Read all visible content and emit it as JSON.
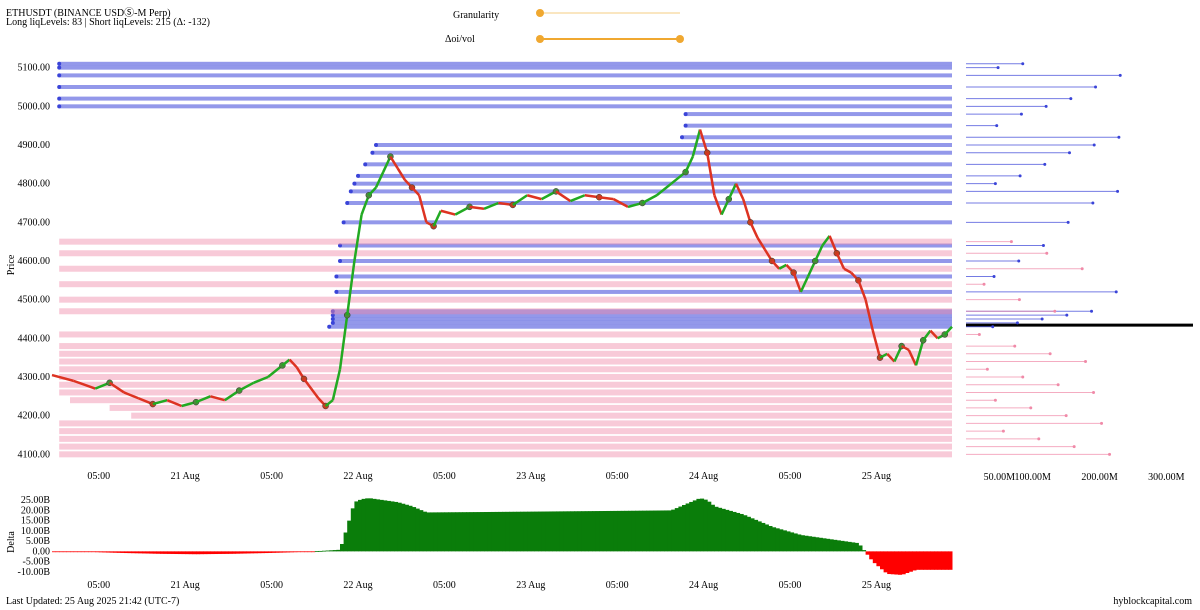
{
  "header": {
    "title": "ETHUSDT (BINANCE USDⓈ-M Perp)",
    "subtitle": "Long liqLevels: 83 | Short liqLevels: 215 (Δ: -132)"
  },
  "controls": {
    "granularity": {
      "label": "Granularity",
      "value": 0.0
    },
    "oi_vol": {
      "label": "Δoi/vol",
      "range": [
        0.0,
        1.0
      ]
    }
  },
  "footer": {
    "last_updated": "Last Updated: 25 Aug 2025 21:42 (UTC-7)",
    "brand": "hyblockcapital.com"
  },
  "colors": {
    "short_lines": "#3a44d8",
    "long_lines": "#f08aa8",
    "candle_up": "#22aa22",
    "candle_down": "#dd3322",
    "delta_pos": "#0a7d0a",
    "delta_neg": "#ff0000",
    "slider": "#f0a830"
  },
  "chart_data": [
    {
      "type": "line",
      "ylabel": "Price",
      "ylim": [
        4075,
        5125
      ],
      "yticks": [
        "4100.00",
        "4200.00",
        "4300.00",
        "4400.00",
        "4500.00",
        "4600.00",
        "4700.00",
        "4800.00",
        "4900.00",
        "5000.00",
        "5100.00"
      ],
      "xticks": [
        "05:00",
        "21 Aug",
        "05:00",
        "22 Aug",
        "05:00",
        "23 Aug",
        "05:00",
        "24 Aug",
        "05:00",
        "25 Aug"
      ],
      "price_points": [
        [
          0,
          4305
        ],
        [
          3,
          4290
        ],
        [
          6,
          4270
        ],
        [
          8,
          4285
        ],
        [
          10,
          4260
        ],
        [
          12,
          4245
        ],
        [
          14,
          4230
        ],
        [
          16,
          4240
        ],
        [
          18,
          4225
        ],
        [
          20,
          4235
        ],
        [
          22,
          4250
        ],
        [
          24,
          4240
        ],
        [
          26,
          4265
        ],
        [
          28,
          4285
        ],
        [
          30,
          4300
        ],
        [
          32,
          4330
        ],
        [
          33,
          4345
        ],
        [
          34,
          4325
        ],
        [
          35,
          4295
        ],
        [
          36,
          4270
        ],
        [
          37,
          4245
        ],
        [
          38,
          4225
        ],
        [
          39,
          4240
        ],
        [
          40,
          4320
        ],
        [
          41,
          4460
        ],
        [
          42,
          4600
        ],
        [
          43,
          4720
        ],
        [
          44,
          4770
        ],
        [
          45,
          4790
        ],
        [
          46,
          4830
        ],
        [
          47,
          4870
        ],
        [
          48,
          4840
        ],
        [
          49,
          4810
        ],
        [
          50,
          4790
        ],
        [
          51,
          4770
        ],
        [
          52,
          4700
        ],
        [
          53,
          4690
        ],
        [
          54,
          4730
        ],
        [
          56,
          4720
        ],
        [
          58,
          4740
        ],
        [
          60,
          4735
        ],
        [
          62,
          4750
        ],
        [
          64,
          4745
        ],
        [
          66,
          4770
        ],
        [
          68,
          4760
        ],
        [
          70,
          4780
        ],
        [
          72,
          4755
        ],
        [
          74,
          4770
        ],
        [
          76,
          4765
        ],
        [
          78,
          4760
        ],
        [
          80,
          4740
        ],
        [
          82,
          4750
        ],
        [
          84,
          4770
        ],
        [
          86,
          4800
        ],
        [
          88,
          4830
        ],
        [
          89,
          4870
        ],
        [
          90,
          4940
        ],
        [
          91,
          4880
        ],
        [
          92,
          4770
        ],
        [
          93,
          4720
        ],
        [
          94,
          4760
        ],
        [
          95,
          4800
        ],
        [
          96,
          4760
        ],
        [
          97,
          4700
        ],
        [
          98,
          4660
        ],
        [
          99,
          4630
        ],
        [
          100,
          4600
        ],
        [
          101,
          4580
        ],
        [
          102,
          4590
        ],
        [
          103,
          4570
        ],
        [
          104,
          4520
        ],
        [
          105,
          4560
        ],
        [
          106,
          4600
        ],
        [
          107,
          4640
        ],
        [
          108,
          4665
        ],
        [
          109,
          4620
        ],
        [
          110,
          4580
        ],
        [
          111,
          4570
        ],
        [
          112,
          4550
        ],
        [
          113,
          4500
        ],
        [
          114,
          4420
        ],
        [
          115,
          4350
        ],
        [
          116,
          4360
        ],
        [
          117,
          4340
        ],
        [
          118,
          4380
        ],
        [
          119,
          4370
        ],
        [
          120,
          4330
        ],
        [
          121,
          4395
        ],
        [
          122,
          4420
        ],
        [
          123,
          4400
        ],
        [
          124,
          4410
        ],
        [
          125,
          4430
        ]
      ],
      "current_price": 4434,
      "liq_levels": {
        "short": [
          4430,
          4440,
          4450,
          4460,
          4470,
          4520,
          4560,
          4600,
          4640,
          4700,
          4750,
          4780,
          4800,
          4820,
          4850,
          4880,
          4900,
          4920,
          4950,
          4980,
          5000,
          5020,
          5050,
          5080,
          5100,
          5110
        ],
        "long": [
          4410,
          4380,
          4360,
          4340,
          4320,
          4300,
          4280,
          4260,
          4240,
          4220,
          4200,
          4180,
          4160,
          4140,
          4120,
          4100,
          4650,
          4620,
          4580,
          4540,
          4500,
          4470
        ]
      }
    },
    {
      "type": "bar",
      "xlabel": "",
      "ylabel": "Price",
      "orientation": "horizontal",
      "xticks": [
        "50.00M",
        "100.00M",
        "200.00M",
        "300.00M"
      ],
      "xlim": [
        0,
        340
      ]
    },
    {
      "type": "area",
      "ylabel": "Delta",
      "ylim": [
        -13,
        28
      ],
      "yticks": [
        "25.00B",
        "20.00B",
        "15.00B",
        "10.00B",
        "5.00B",
        "0.00",
        "-5.00B",
        "-10.00B"
      ],
      "xticks": [
        "05:00",
        "21 Aug",
        "05:00",
        "22 Aug",
        "05:00",
        "23 Aug",
        "05:00",
        "24 Aug",
        "05:00",
        "25 Aug"
      ],
      "delta_points": [
        [
          0,
          0.0
        ],
        [
          5,
          -0.3
        ],
        [
          10,
          -0.8
        ],
        [
          15,
          -1.2
        ],
        [
          20,
          -1.4
        ],
        [
          25,
          -1.2
        ],
        [
          30,
          -0.8
        ],
        [
          35,
          -0.3
        ],
        [
          40,
          0.8
        ],
        [
          41,
          12
        ],
        [
          42,
          24
        ],
        [
          43,
          25.5
        ],
        [
          44,
          26
        ],
        [
          46,
          25
        ],
        [
          48,
          24
        ],
        [
          50,
          22
        ],
        [
          52,
          19
        ],
        [
          60,
          19.2
        ],
        [
          70,
          19.5
        ],
        [
          80,
          19.8
        ],
        [
          86,
          20
        ],
        [
          88,
          23
        ],
        [
          90,
          26
        ],
        [
          91,
          25
        ],
        [
          92,
          22
        ],
        [
          96,
          18
        ],
        [
          100,
          12
        ],
        [
          104,
          8
        ],
        [
          108,
          6
        ],
        [
          112,
          4
        ],
        [
          114,
          -5
        ],
        [
          116,
          -11
        ],
        [
          118,
          -11.5
        ],
        [
          120,
          -9
        ],
        [
          122,
          -9
        ],
        [
          125,
          -9
        ]
      ]
    }
  ]
}
